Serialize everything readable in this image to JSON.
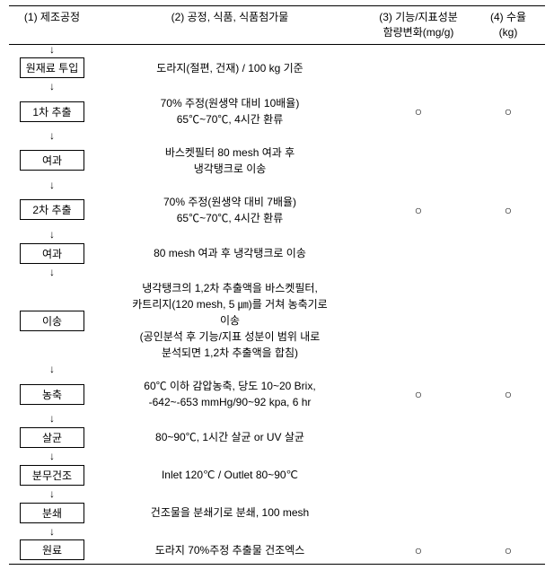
{
  "header": {
    "col1": "(1) 제조공정",
    "col2": "(2) 공정, 식품, 식품첨가물",
    "col3_l1": "(3) 기능/지표성분",
    "col3_l2": "함량변화(mg/g)",
    "col4_l1": "(4) 수율",
    "col4_l2": "(kg)"
  },
  "rows": [
    {
      "box": "원재료 투입",
      "desc_lines": [
        "도라지(절편, 건재) / 100 kg 기준"
      ],
      "m3": "",
      "m4": ""
    },
    {
      "box": "1차 추출",
      "desc_lines": [
        "70% 주정(원생약 대비 10배율)",
        "65℃~70℃, 4시간 환류"
      ],
      "m3": "○",
      "m4": "○"
    },
    {
      "box": "여과",
      "desc_lines": [
        "바스켓필터 80 mesh 여과 후",
        "냉각탱크로 이송"
      ],
      "m3": "",
      "m4": ""
    },
    {
      "box": "2차 추출",
      "desc_lines": [
        "70% 주정(원생약 대비 7배율)",
        "65℃~70℃, 4시간 환류"
      ],
      "m3": "○",
      "m4": "○"
    },
    {
      "box": "여과",
      "desc_lines": [
        "80 mesh 여과 후 냉각탱크로 이송"
      ],
      "m3": "",
      "m4": ""
    },
    {
      "box": "이송",
      "desc_lines": [
        "냉각탱크의 1,2차 추출액을 바스켓필터,",
        "카트리지(120 mesh, 5 ㎛)를 거쳐 농축기로",
        "이송",
        "(공인분석 후 기능/지표 성분이 범위 내로",
        "분석되면 1,2차 추출액을 합침)"
      ],
      "m3": "",
      "m4": ""
    },
    {
      "box": "농축",
      "desc_lines": [
        "60℃ 이하 감압농축, 당도 10~20 Brix,",
        "-642~-653 mmHg/90~92 kpa, 6 hr"
      ],
      "m3": "○",
      "m4": "○"
    },
    {
      "box": "살균",
      "desc_lines": [
        "80~90℃, 1시간 살균 or UV 살균"
      ],
      "m3": "",
      "m4": ""
    },
    {
      "box": "분무건조",
      "desc_lines": [
        "Inlet 120℃ / Outlet 80~90℃"
      ],
      "m3": "",
      "m4": ""
    },
    {
      "box": "분쇄",
      "desc_lines": [
        "건조물을 분쇄기로 분쇄, 100 mesh"
      ],
      "m3": "",
      "m4": ""
    },
    {
      "box": "원료",
      "desc_lines": [
        "도라지 70%주정 추출물 건조엑스"
      ],
      "m3": "○",
      "m4": "○"
    }
  ],
  "arrow": "↓"
}
